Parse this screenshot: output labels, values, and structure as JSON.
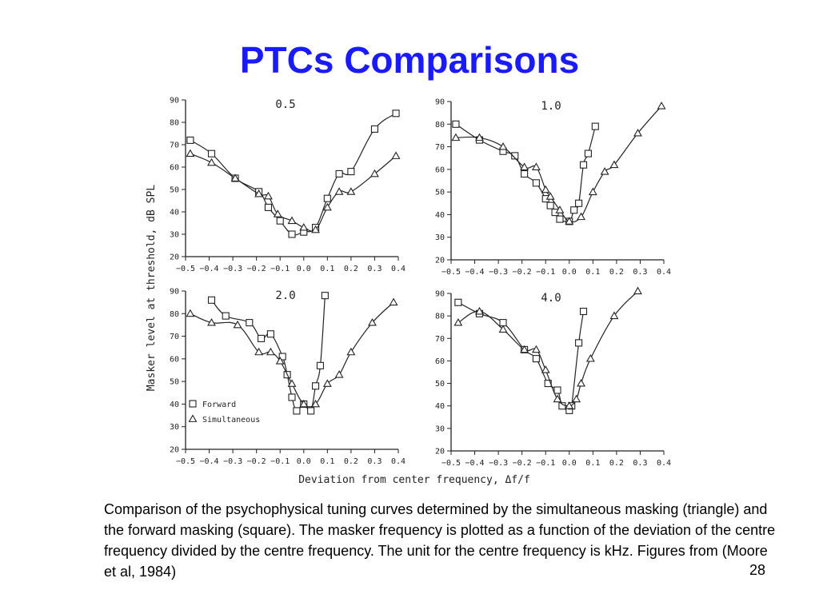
{
  "slide": {
    "title": "PTCs Comparisons",
    "caption": "Comparison of the psychophysical tuning curves determined by the simultaneous masking (triangle) and the forward masking (square). The masker frequency is plotted as a function of the deviation of the centre frequency divided by the centre frequency. The unit for the centre frequency is kHz. Figures from (Moore et al, 1984)",
    "page_number": "28"
  },
  "figure": {
    "ylabel": "Masker level at threshold, dB SPL",
    "xlabel": "Deviation from center frequency, Δf/f",
    "legend": {
      "forward": "Forward",
      "simultaneous": "Simultaneous"
    },
    "marker_shapes": {
      "forward": "square",
      "simultaneous": "triangle"
    }
  },
  "chart_data": [
    {
      "type": "line",
      "title": "0.5",
      "xlim": [
        -0.5,
        0.4
      ],
      "ylim": [
        20,
        90
      ],
      "x_ticks": [
        -0.5,
        -0.4,
        -0.3,
        -0.2,
        -0.1,
        0.0,
        0.1,
        0.2,
        0.3,
        0.4
      ],
      "y_ticks": [
        20,
        30,
        40,
        50,
        60,
        70,
        80,
        90
      ],
      "series": [
        {
          "name": "Forward",
          "marker": "square",
          "points": [
            [
              -0.48,
              72
            ],
            [
              -0.39,
              66
            ],
            [
              -0.29,
              55
            ],
            [
              -0.19,
              49
            ],
            [
              -0.15,
              42
            ],
            [
              -0.1,
              36
            ],
            [
              -0.05,
              30
            ],
            [
              0.0,
              31
            ],
            [
              0.05,
              33
            ],
            [
              0.1,
              46
            ],
            [
              0.15,
              57
            ],
            [
              0.2,
              58
            ],
            [
              0.3,
              77
            ],
            [
              0.39,
              84
            ]
          ]
        },
        {
          "name": "Simultaneous",
          "marker": "triangle",
          "points": [
            [
              -0.48,
              66
            ],
            [
              -0.39,
              62
            ],
            [
              -0.29,
              55
            ],
            [
              -0.19,
              48
            ],
            [
              -0.15,
              47
            ],
            [
              -0.11,
              39
            ],
            [
              -0.05,
              36
            ],
            [
              0.0,
              33
            ],
            [
              0.05,
              32
            ],
            [
              0.1,
              42
            ],
            [
              0.15,
              49
            ],
            [
              0.2,
              49
            ],
            [
              0.3,
              57
            ],
            [
              0.39,
              65
            ]
          ]
        }
      ]
    },
    {
      "type": "line",
      "title": "1.0",
      "xlim": [
        -0.5,
        0.4
      ],
      "ylim": [
        20,
        90
      ],
      "x_ticks": [
        -0.5,
        -0.4,
        -0.3,
        -0.2,
        -0.1,
        0.0,
        0.1,
        0.2,
        0.3,
        0.4
      ],
      "y_ticks": [
        20,
        30,
        40,
        50,
        60,
        70,
        80,
        90
      ],
      "series": [
        {
          "name": "Forward",
          "marker": "square",
          "points": [
            [
              -0.48,
              80
            ],
            [
              -0.38,
              73
            ],
            [
              -0.28,
              68
            ],
            [
              -0.23,
              66
            ],
            [
              -0.19,
              58
            ],
            [
              -0.14,
              54
            ],
            [
              -0.1,
              47
            ],
            [
              -0.08,
              44
            ],
            [
              -0.06,
              41
            ],
            [
              -0.04,
              38
            ],
            [
              0.0,
              37
            ],
            [
              0.02,
              42
            ],
            [
              0.04,
              45
            ],
            [
              0.06,
              62
            ],
            [
              0.08,
              67
            ],
            [
              0.11,
              79
            ]
          ]
        },
        {
          "name": "Simultaneous",
          "marker": "triangle",
          "points": [
            [
              -0.48,
              74
            ],
            [
              -0.38,
              74
            ],
            [
              -0.28,
              70
            ],
            [
              -0.19,
              61
            ],
            [
              -0.14,
              61
            ],
            [
              -0.1,
              51
            ],
            [
              -0.08,
              48
            ],
            [
              -0.04,
              42
            ],
            [
              0.0,
              37
            ],
            [
              0.05,
              39
            ],
            [
              0.1,
              50
            ],
            [
              0.15,
              59
            ],
            [
              0.19,
              62
            ],
            [
              0.29,
              76
            ],
            [
              0.39,
              88
            ]
          ]
        }
      ]
    },
    {
      "type": "line",
      "title": "2.0",
      "xlim": [
        -0.5,
        0.4
      ],
      "ylim": [
        20,
        90
      ],
      "x_ticks": [
        -0.5,
        -0.4,
        -0.3,
        -0.2,
        -0.1,
        0.0,
        0.1,
        0.2,
        0.3,
        0.4
      ],
      "y_ticks": [
        20,
        30,
        40,
        50,
        60,
        70,
        80,
        90
      ],
      "series": [
        {
          "name": "Forward",
          "marker": "square",
          "points": [
            [
              -0.39,
              86
            ],
            [
              -0.33,
              79
            ],
            [
              -0.23,
              76
            ],
            [
              -0.18,
              69
            ],
            [
              -0.14,
              71
            ],
            [
              -0.09,
              61
            ],
            [
              -0.07,
              53
            ],
            [
              -0.05,
              43
            ],
            [
              -0.03,
              37
            ],
            [
              0.0,
              40
            ],
            [
              0.03,
              37
            ],
            [
              0.05,
              48
            ],
            [
              0.07,
              57
            ],
            [
              0.09,
              88
            ]
          ]
        },
        {
          "name": "Simultaneous",
          "marker": "triangle",
          "points": [
            [
              -0.48,
              80
            ],
            [
              -0.39,
              76
            ],
            [
              -0.28,
              75
            ],
            [
              -0.19,
              63
            ],
            [
              -0.14,
              63
            ],
            [
              -0.1,
              59
            ],
            [
              -0.05,
              49
            ],
            [
              0.0,
              40
            ],
            [
              0.05,
              40
            ],
            [
              0.1,
              49
            ],
            [
              0.15,
              53
            ],
            [
              0.2,
              63
            ],
            [
              0.29,
              76
            ],
            [
              0.38,
              85
            ]
          ]
        }
      ]
    },
    {
      "type": "line",
      "title": "4.0",
      "xlim": [
        -0.5,
        0.4
      ],
      "ylim": [
        20,
        90
      ],
      "x_ticks": [
        -0.5,
        -0.4,
        -0.3,
        -0.2,
        -0.1,
        0.0,
        0.1,
        0.2,
        0.3,
        0.4
      ],
      "y_ticks": [
        20,
        30,
        40,
        50,
        60,
        70,
        80,
        90
      ],
      "series": [
        {
          "name": "Forward",
          "marker": "square",
          "points": [
            [
              -0.47,
              86
            ],
            [
              -0.38,
              81
            ],
            [
              -0.28,
              77
            ],
            [
              -0.19,
              65
            ],
            [
              -0.14,
              61
            ],
            [
              -0.09,
              50
            ],
            [
              -0.05,
              47
            ],
            [
              -0.03,
              40
            ],
            [
              0.0,
              38
            ],
            [
              0.01,
              40
            ],
            [
              0.04,
              68
            ],
            [
              0.06,
              82
            ]
          ]
        },
        {
          "name": "Simultaneous",
          "marker": "triangle",
          "points": [
            [
              -0.47,
              77
            ],
            [
              -0.38,
              82
            ],
            [
              -0.28,
              74
            ],
            [
              -0.19,
              65
            ],
            [
              -0.14,
              65
            ],
            [
              -0.1,
              56
            ],
            [
              -0.05,
              43
            ],
            [
              0.0,
              40
            ],
            [
              0.03,
              43
            ],
            [
              0.05,
              50
            ],
            [
              0.09,
              61
            ],
            [
              0.19,
              80
            ],
            [
              0.29,
              91
            ]
          ]
        }
      ]
    }
  ]
}
